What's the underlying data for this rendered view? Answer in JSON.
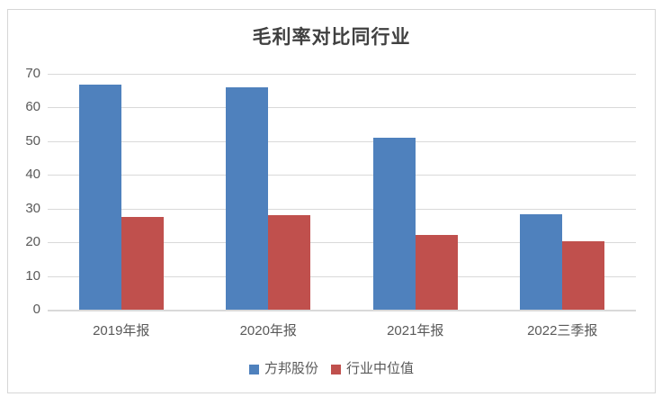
{
  "chart_data": {
    "type": "bar",
    "title": "毛利率对比同行业",
    "categories": [
      "2019年报",
      "2020年报",
      "2021年报",
      "2022三季报"
    ],
    "series": [
      {
        "name": "方邦股份",
        "color": "#4F81BD",
        "values": [
          66.9,
          66.1,
          51.0,
          28.3
        ]
      },
      {
        "name": "行业中位值",
        "color": "#C0504D",
        "values": [
          27.4,
          28.0,
          22.1,
          20.2
        ]
      }
    ],
    "xlabel": "",
    "ylabel": "",
    "ylim": [
      0,
      70
    ],
    "yticks": [
      0,
      10,
      20,
      30,
      40,
      50,
      60,
      70
    ],
    "grid": true,
    "legend_position": "bottom"
  },
  "colors": {
    "bar_series_1": "#4F81BD",
    "bar_series_2": "#C0504D",
    "gridline": "#D9D9D9",
    "frame_border": "#D6D6D6",
    "title_text": "#404040",
    "axis_text": "#595959",
    "background": "#FFFFFF"
  }
}
